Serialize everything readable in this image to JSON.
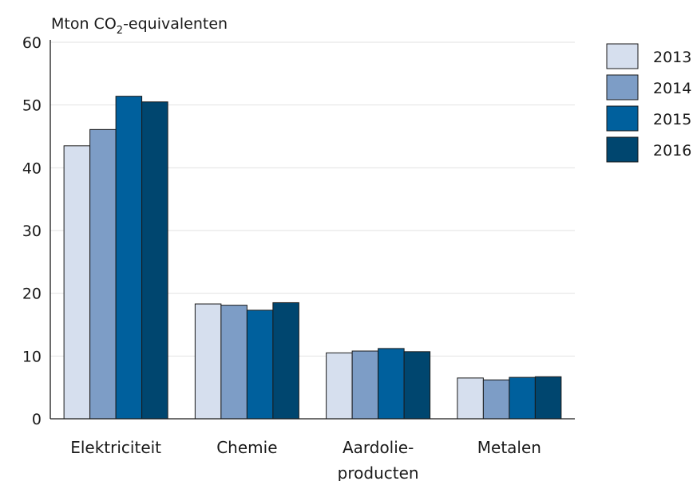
{
  "chart_data": {
    "type": "bar",
    "ylabel": "Mton CO2-equivalenten",
    "ylabel_parts": [
      "Mton CO",
      "2",
      "-equivalenten"
    ],
    "categories": [
      "Elektriciteit",
      "Chemie",
      "Aardolie-producten",
      "Metalen"
    ],
    "category_lines": [
      [
        "Elektriciteit"
      ],
      [
        "Chemie"
      ],
      [
        "Aardolie-",
        "producten"
      ],
      [
        "Metalen"
      ]
    ],
    "series": [
      {
        "name": "2013",
        "color": "#d6dfee",
        "values": [
          43.5,
          18.3,
          10.5,
          6.5
        ]
      },
      {
        "name": "2014",
        "color": "#7d9dc6",
        "values": [
          46.1,
          18.1,
          10.8,
          6.2
        ]
      },
      {
        "name": "2015",
        "color": "#00609d",
        "values": [
          51.4,
          17.3,
          11.2,
          6.6
        ]
      },
      {
        "name": "2016",
        "color": "#00466f",
        "values": [
          50.5,
          18.5,
          10.7,
          6.7
        ]
      }
    ],
    "ylim": [
      0,
      60
    ],
    "yticks": [
      0,
      10,
      20,
      30,
      40,
      50,
      60
    ],
    "grid": true,
    "legend_position": "right"
  }
}
